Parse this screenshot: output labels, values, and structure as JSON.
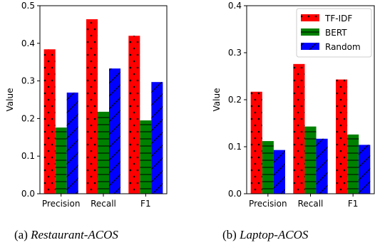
{
  "chart_data": [
    {
      "type": "bar",
      "categories": [
        "Precision",
        "Recall",
        "F1"
      ],
      "series": [
        {
          "name": "TF-IDF",
          "values": [
            0.384,
            0.464,
            0.42
          ],
          "color": "#ff0000",
          "hatch": "dots"
        },
        {
          "name": "BERT",
          "values": [
            0.176,
            0.218,
            0.195
          ],
          "color": "#008000",
          "hatch": "horizontal"
        },
        {
          "name": "Random",
          "values": [
            0.269,
            0.333,
            0.297
          ],
          "color": "#0000ff",
          "hatch": "diagonal"
        }
      ],
      "ylabel": "Value",
      "ylim": [
        0,
        0.5
      ],
      "yticks": [
        "0.0",
        "0.1",
        "0.2",
        "0.3",
        "0.4",
        "0.5"
      ],
      "legend": false,
      "grid": false,
      "caption_label": "(a) ",
      "caption_name": "Restaurant-ACOS"
    },
    {
      "type": "bar",
      "categories": [
        "Precision",
        "Recall",
        "F1"
      ],
      "series": [
        {
          "name": "TF-IDF",
          "values": [
            0.217,
            0.276,
            0.243
          ],
          "color": "#ff0000",
          "hatch": "dots"
        },
        {
          "name": "BERT",
          "values": [
            0.112,
            0.143,
            0.126
          ],
          "color": "#008000",
          "hatch": "horizontal"
        },
        {
          "name": "Random",
          "values": [
            0.093,
            0.117,
            0.104
          ],
          "color": "#0000ff",
          "hatch": "diagonal"
        }
      ],
      "ylabel": "Value",
      "ylim": [
        0,
        0.4
      ],
      "yticks": [
        "0.0",
        "0.1",
        "0.2",
        "0.3",
        "0.4"
      ],
      "legend": true,
      "legend_position": "top-right",
      "grid": false,
      "caption_label": "(b) ",
      "caption_name": "Laptop-ACOS"
    }
  ]
}
